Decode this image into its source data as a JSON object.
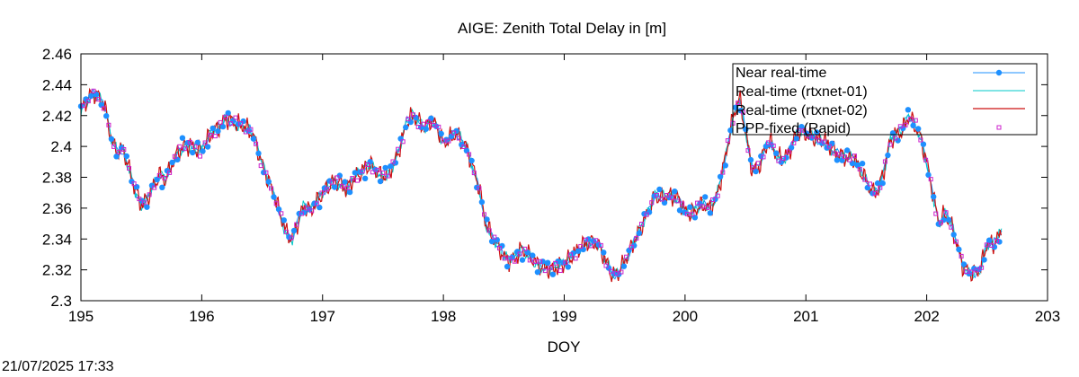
{
  "chart_data": {
    "type": "line",
    "title": "AIGE: Zenith Total Delay in [m]",
    "xlabel": "DOY",
    "ylabel": "",
    "xlim": [
      195,
      203
    ],
    "ylim": [
      2.3,
      2.46
    ],
    "xticks": [
      "195",
      "196",
      "197",
      "198",
      "199",
      "200",
      "201",
      "202",
      "203"
    ],
    "yticks": [
      "2.3",
      "2.32",
      "2.34",
      "2.36",
      "2.38",
      "2.4",
      "2.42",
      "2.44",
      "2.46"
    ],
    "grid": false,
    "legend_position": "top-right",
    "colors": {
      "near_real_time": "#1e90ff",
      "rtxnet01": "#00c8c8",
      "rtxnet02": "#cc1111",
      "ppp_fixed": "#cc22cc"
    },
    "anchors": [
      [
        195.0,
        2.424
      ],
      [
        195.05,
        2.43
      ],
      [
        195.1,
        2.434
      ],
      [
        195.15,
        2.432
      ],
      [
        195.2,
        2.425
      ],
      [
        195.25,
        2.405
      ],
      [
        195.3,
        2.396
      ],
      [
        195.35,
        2.398
      ],
      [
        195.4,
        2.385
      ],
      [
        195.45,
        2.372
      ],
      [
        195.5,
        2.362
      ],
      [
        195.55,
        2.366
      ],
      [
        195.6,
        2.374
      ],
      [
        195.65,
        2.382
      ],
      [
        195.7,
        2.378
      ],
      [
        195.75,
        2.388
      ],
      [
        195.8,
        2.396
      ],
      [
        195.85,
        2.4
      ],
      [
        195.9,
        2.401
      ],
      [
        195.95,
        2.398
      ],
      [
        196.0,
        2.397
      ],
      [
        196.05,
        2.405
      ],
      [
        196.1,
        2.41
      ],
      [
        196.15,
        2.413
      ],
      [
        196.2,
        2.418
      ],
      [
        196.25,
        2.417
      ],
      [
        196.3,
        2.414
      ],
      [
        196.35,
        2.413
      ],
      [
        196.4,
        2.41
      ],
      [
        196.45,
        2.402
      ],
      [
        196.5,
        2.388
      ],
      [
        196.55,
        2.378
      ],
      [
        196.6,
        2.368
      ],
      [
        196.65,
        2.356
      ],
      [
        196.7,
        2.344
      ],
      [
        196.75,
        2.34
      ],
      [
        196.8,
        2.352
      ],
      [
        196.85,
        2.362
      ],
      [
        196.9,
        2.358
      ],
      [
        196.95,
        2.364
      ],
      [
        197.0,
        2.37
      ],
      [
        197.05,
        2.374
      ],
      [
        197.1,
        2.378
      ],
      [
        197.15,
        2.376
      ],
      [
        197.2,
        2.372
      ],
      [
        197.25,
        2.378
      ],
      [
        197.3,
        2.382
      ],
      [
        197.35,
        2.386
      ],
      [
        197.4,
        2.388
      ],
      [
        197.45,
        2.384
      ],
      [
        197.5,
        2.38
      ],
      [
        197.55,
        2.384
      ],
      [
        197.6,
        2.39
      ],
      [
        197.65,
        2.402
      ],
      [
        197.7,
        2.416
      ],
      [
        197.75,
        2.42
      ],
      [
        197.8,
        2.416
      ],
      [
        197.85,
        2.412
      ],
      [
        197.9,
        2.418
      ],
      [
        197.95,
        2.412
      ],
      [
        198.0,
        2.402
      ],
      [
        198.05,
        2.405
      ],
      [
        198.1,
        2.408
      ],
      [
        198.15,
        2.404
      ],
      [
        198.2,
        2.398
      ],
      [
        198.25,
        2.385
      ],
      [
        198.3,
        2.372
      ],
      [
        198.35,
        2.35
      ],
      [
        198.4,
        2.342
      ],
      [
        198.45,
        2.336
      ],
      [
        198.5,
        2.328
      ],
      [
        198.55,
        2.326
      ],
      [
        198.6,
        2.328
      ],
      [
        198.65,
        2.334
      ],
      [
        198.7,
        2.33
      ],
      [
        198.75,
        2.326
      ],
      [
        198.8,
        2.322
      ],
      [
        198.85,
        2.321
      ],
      [
        198.9,
        2.32
      ],
      [
        198.95,
        2.322
      ],
      [
        199.0,
        2.324
      ],
      [
        199.05,
        2.328
      ],
      [
        199.1,
        2.332
      ],
      [
        199.15,
        2.336
      ],
      [
        199.2,
        2.338
      ],
      [
        199.25,
        2.338
      ],
      [
        199.3,
        2.334
      ],
      [
        199.35,
        2.324
      ],
      [
        199.4,
        2.316
      ],
      [
        199.45,
        2.318
      ],
      [
        199.5,
        2.326
      ],
      [
        199.55,
        2.334
      ],
      [
        199.6,
        2.342
      ],
      [
        199.65,
        2.35
      ],
      [
        199.7,
        2.358
      ],
      [
        199.75,
        2.368
      ],
      [
        199.8,
        2.366
      ],
      [
        199.85,
        2.368
      ],
      [
        199.9,
        2.368
      ],
      [
        199.95,
        2.366
      ],
      [
        200.0,
        2.358
      ],
      [
        200.05,
        2.356
      ],
      [
        200.1,
        2.36
      ],
      [
        200.15,
        2.362
      ],
      [
        200.2,
        2.36
      ],
      [
        200.25,
        2.364
      ],
      [
        200.3,
        2.38
      ],
      [
        200.35,
        2.4
      ],
      [
        200.4,
        2.42
      ],
      [
        200.45,
        2.432
      ],
      [
        200.5,
        2.41
      ],
      [
        200.55,
        2.386
      ],
      [
        200.6,
        2.384
      ],
      [
        200.65,
        2.396
      ],
      [
        200.7,
        2.404
      ],
      [
        200.75,
        2.396
      ],
      [
        200.8,
        2.392
      ],
      [
        200.85,
        2.394
      ],
      [
        200.9,
        2.404
      ],
      [
        200.95,
        2.41
      ],
      [
        201.0,
        2.408
      ],
      [
        201.05,
        2.406
      ],
      [
        201.1,
        2.404
      ],
      [
        201.15,
        2.404
      ],
      [
        201.2,
        2.4
      ],
      [
        201.25,
        2.396
      ],
      [
        201.3,
        2.394
      ],
      [
        201.35,
        2.392
      ],
      [
        201.4,
        2.392
      ],
      [
        201.45,
        2.384
      ],
      [
        201.5,
        2.378
      ],
      [
        201.55,
        2.37
      ],
      [
        201.6,
        2.372
      ],
      [
        201.65,
        2.386
      ],
      [
        201.7,
        2.404
      ],
      [
        201.75,
        2.408
      ],
      [
        201.8,
        2.41
      ],
      [
        201.85,
        2.42
      ],
      [
        201.9,
        2.414
      ],
      [
        201.95,
        2.406
      ],
      [
        202.0,
        2.39
      ],
      [
        202.05,
        2.37
      ],
      [
        202.1,
        2.35
      ],
      [
        202.15,
        2.356
      ],
      [
        202.2,
        2.35
      ],
      [
        202.25,
        2.336
      ],
      [
        202.3,
        2.322
      ],
      [
        202.35,
        2.318
      ],
      [
        202.4,
        2.318
      ],
      [
        202.45,
        2.322
      ],
      [
        202.5,
        2.338
      ],
      [
        202.55,
        2.336
      ],
      [
        202.6,
        2.342
      ],
      [
        202.62,
        2.344
      ]
    ],
    "series": [
      {
        "name": "Near real-time",
        "style": "linespoints"
      },
      {
        "name": "Real-time (rtxnet-01)",
        "style": "line"
      },
      {
        "name": "Real-time (rtxnet-02)",
        "style": "line"
      },
      {
        "name": "PPP-fixed (Rapid)",
        "style": "points"
      }
    ]
  },
  "footer": {
    "timestamp": "21/07/2025 17:33"
  }
}
